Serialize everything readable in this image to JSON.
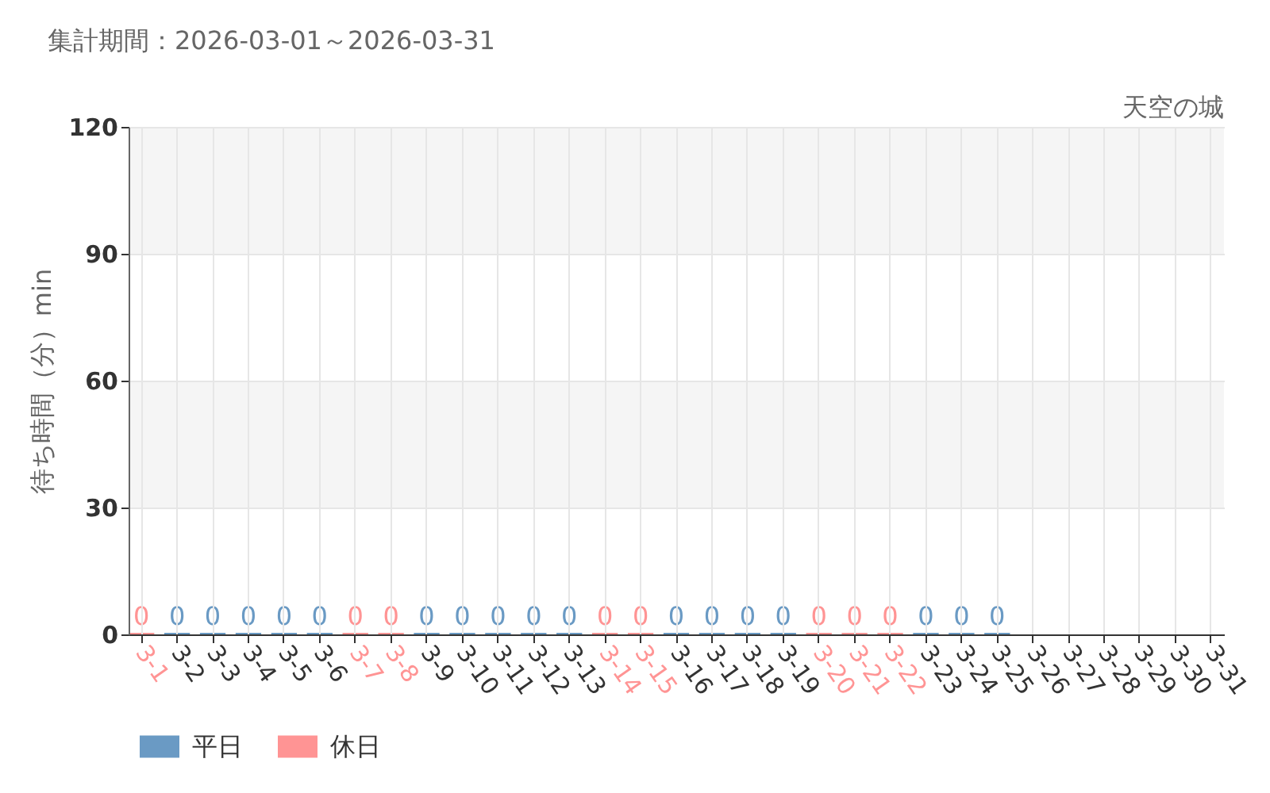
{
  "chart_data": {
    "type": "bar",
    "title": "集計期間：2026-03-01～2026-03-31",
    "subtitle": "天空の城",
    "ylabel": "待ち時間（分）min",
    "categories": [
      "3-1",
      "3-2",
      "3-3",
      "3-4",
      "3-5",
      "3-6",
      "3-7",
      "3-8",
      "3-9",
      "3-10",
      "3-11",
      "3-12",
      "3-13",
      "3-14",
      "3-15",
      "3-16",
      "3-17",
      "3-18",
      "3-19",
      "3-20",
      "3-21",
      "3-22",
      "3-23",
      "3-24",
      "3-25",
      "3-26",
      "3-27",
      "3-28",
      "3-29",
      "3-30",
      "3-31"
    ],
    "series": [
      {
        "name": "平日",
        "color": "#6a9ac4",
        "values": [
          null,
          0,
          0,
          0,
          0,
          0,
          null,
          null,
          0,
          0,
          0,
          0,
          0,
          null,
          null,
          0,
          0,
          0,
          0,
          null,
          null,
          null,
          0,
          0,
          0,
          null,
          null,
          null,
          null,
          null,
          null
        ]
      },
      {
        "name": "休日",
        "color": "#ff9494",
        "values": [
          0,
          null,
          null,
          null,
          null,
          null,
          0,
          0,
          null,
          null,
          null,
          null,
          null,
          0,
          0,
          null,
          null,
          null,
          null,
          0,
          0,
          0,
          null,
          null,
          null,
          null,
          null,
          null,
          null,
          null,
          null
        ]
      }
    ],
    "ylim": [
      0,
      120
    ],
    "yticks": [
      0,
      30,
      60,
      90,
      120
    ],
    "grid": true,
    "legend": "bottom left",
    "data_labels": true,
    "bands": [
      {
        "axis": "y",
        "from": 30,
        "to": 60,
        "color": "#f5f5f5"
      },
      {
        "axis": "y",
        "from": 90,
        "to": 120,
        "color": "#f5f5f5"
      }
    ]
  }
}
